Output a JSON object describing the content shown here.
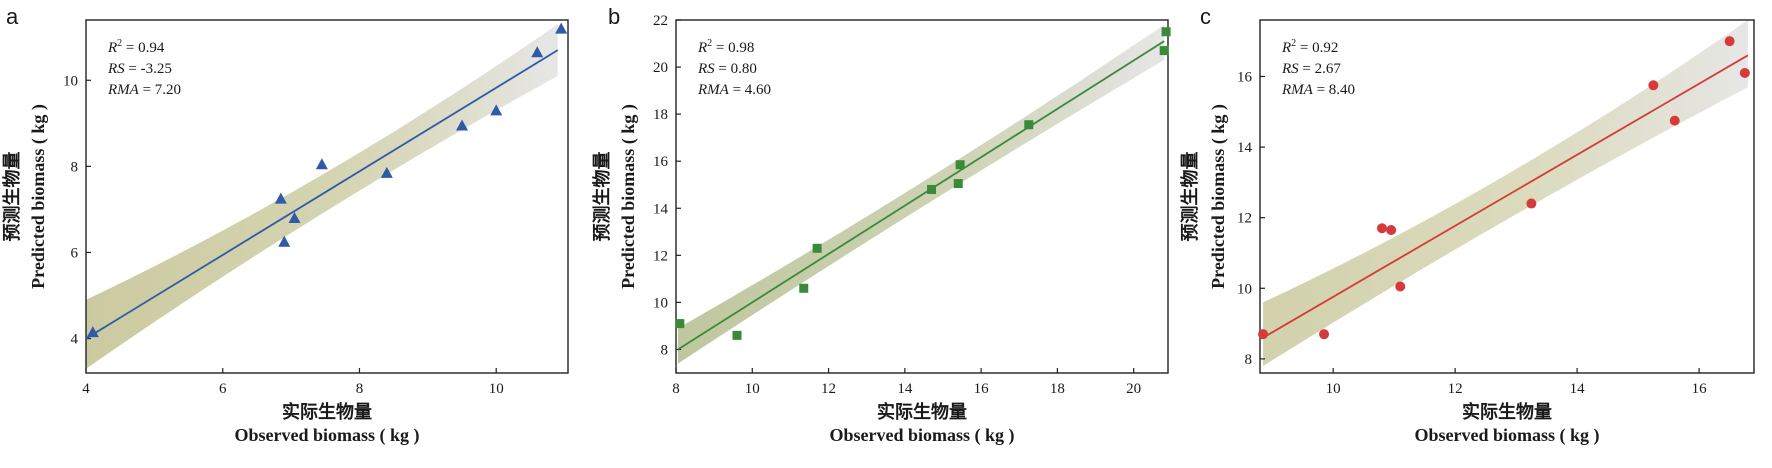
{
  "chart_data": [
    {
      "panel": "a",
      "type": "scatter",
      "marker": "triangle",
      "color": "#2f5aa8",
      "band_color": "#c8c79a",
      "xlabel_cn": "实际生物量",
      "xlabel_en": "Observed biomass ( kg )",
      "ylabel_en": "Predicted biomass ( kg )",
      "ylabel_cn": "预测生物量",
      "xlim": [
        4,
        11.05
      ],
      "ylim": [
        3.2,
        11.4
      ],
      "xticks": [
        4,
        6,
        8,
        10
      ],
      "yticks": [
        4,
        6,
        8,
        10
      ],
      "stats": [
        {
          "label": "R",
          "sup": "2",
          "value": " = 0.94"
        },
        {
          "label": "RS",
          "sup": "",
          "value": " = -3.25"
        },
        {
          "label": "RMA",
          "sup": "",
          "value": " = 7.20"
        }
      ],
      "points": [
        {
          "x": 4.1,
          "y": 4.15
        },
        {
          "x": 6.85,
          "y": 7.25
        },
        {
          "x": 6.9,
          "y": 6.25
        },
        {
          "x": 7.05,
          "y": 6.8
        },
        {
          "x": 7.45,
          "y": 8.05
        },
        {
          "x": 8.4,
          "y": 7.85
        },
        {
          "x": 9.5,
          "y": 8.95
        },
        {
          "x": 10.0,
          "y": 9.3
        },
        {
          "x": 10.6,
          "y": 10.65
        },
        {
          "x": 10.95,
          "y": 11.2
        }
      ],
      "fit": {
        "x0": 4.0,
        "y0": 4.0,
        "x1": 10.9,
        "y1": 10.7
      },
      "band": {
        "lo_start": 3.3,
        "hi_start": 4.9,
        "lo_mid": 7.1,
        "hi_mid": 7.5,
        "lo_end": 10.1,
        "hi_end": 11.3
      }
    },
    {
      "panel": "b",
      "type": "scatter",
      "marker": "square",
      "color": "#3a8a3a",
      "band_color": "#bcc49a",
      "xlabel_cn": "实际生物量",
      "xlabel_en": "Observed biomass ( kg )",
      "ylabel_en": "Predicted biomass ( kg )",
      "ylabel_cn": "预测生物量",
      "xlim": [
        8,
        20.9
      ],
      "ylim": [
        7,
        22
      ],
      "xticks": [
        8,
        10,
        12,
        14,
        16,
        18,
        20
      ],
      "yticks": [
        8,
        10,
        12,
        14,
        16,
        18,
        20,
        22
      ],
      "stats": [
        {
          "label": "R",
          "sup": "2",
          "value": " = 0.98"
        },
        {
          "label": "RS",
          "sup": "",
          "value": " = 0.80"
        },
        {
          "label": "RMA",
          "sup": "",
          "value": " = 4.60"
        }
      ],
      "points": [
        {
          "x": 8.1,
          "y": 9.1
        },
        {
          "x": 9.6,
          "y": 8.6
        },
        {
          "x": 11.35,
          "y": 10.6
        },
        {
          "x": 11.7,
          "y": 12.3
        },
        {
          "x": 14.7,
          "y": 14.8
        },
        {
          "x": 15.4,
          "y": 15.05
        },
        {
          "x": 15.45,
          "y": 15.85
        },
        {
          "x": 17.25,
          "y": 17.55
        },
        {
          "x": 20.8,
          "y": 20.7
        },
        {
          "x": 20.85,
          "y": 21.5
        }
      ],
      "fit": {
        "x0": 8.05,
        "y0": 8.0,
        "x1": 20.8,
        "y1": 21.1
      },
      "band": {
        "lo_start": 7.4,
        "hi_start": 8.9,
        "lo_mid": 14.2,
        "hi_mid": 14.8,
        "lo_end": 20.3,
        "hi_end": 21.8
      }
    },
    {
      "panel": "c",
      "type": "scatter",
      "marker": "circle",
      "color": "#d63a3a",
      "band_color": "#d0cfa8",
      "xlabel_cn": "实际生物量",
      "xlabel_en": "Observed biomass ( kg )",
      "ylabel_en": "Predicted biomass ( kg )",
      "ylabel_cn": "预测生物量",
      "xlim": [
        8.8,
        16.9
      ],
      "ylim": [
        7.6,
        17.6
      ],
      "xticks": [
        10,
        12,
        14,
        16
      ],
      "yticks": [
        8,
        10,
        12,
        14,
        16
      ],
      "stats": [
        {
          "label": "R",
          "sup": "2",
          "value": " = 0.92"
        },
        {
          "label": "RS",
          "sup": "",
          "value": " = 2.67"
        },
        {
          "label": "RMA",
          "sup": "",
          "value": " = 8.40"
        }
      ],
      "points": [
        {
          "x": 8.85,
          "y": 8.7
        },
        {
          "x": 9.85,
          "y": 8.7
        },
        {
          "x": 10.8,
          "y": 11.7
        },
        {
          "x": 10.95,
          "y": 11.65
        },
        {
          "x": 11.1,
          "y": 10.05
        },
        {
          "x": 13.25,
          "y": 12.4
        },
        {
          "x": 15.25,
          "y": 15.75
        },
        {
          "x": 15.6,
          "y": 14.75
        },
        {
          "x": 16.5,
          "y": 17.0
        },
        {
          "x": 16.75,
          "y": 16.1
        }
      ],
      "fit": {
        "x0": 8.85,
        "y0": 8.6,
        "x1": 16.8,
        "y1": 16.6
      },
      "band": {
        "lo_start": 7.8,
        "hi_start": 9.6,
        "lo_mid": 12.1,
        "hi_mid": 12.8,
        "lo_end": 15.7,
        "hi_end": 17.6
      }
    }
  ]
}
